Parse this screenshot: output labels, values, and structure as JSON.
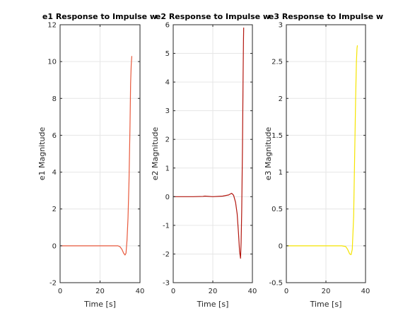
{
  "chart_data": [
    {
      "type": "line",
      "title": "e1 Response to Impulse w",
      "xlabel": "Time [s]",
      "ylabel": "e1 Magnitude",
      "xlim": [
        0,
        40
      ],
      "ylim": [
        -2,
        12
      ],
      "xticks": [
        "0",
        "20",
        "40"
      ],
      "yticks": [
        "-2",
        "0",
        "2",
        "4",
        "6",
        "8",
        "10",
        "12"
      ],
      "grid": true,
      "color": "#e8593c",
      "series": [
        {
          "x": [
            0,
            5,
            10,
            15,
            20,
            25,
            29,
            30,
            31,
            31.8,
            32.5,
            33,
            33.5,
            34,
            34.5,
            35,
            35.3,
            35.6,
            35.9
          ],
          "y": [
            0,
            0,
            0,
            0,
            0,
            0,
            0,
            -0.05,
            -0.2,
            -0.4,
            -0.5,
            -0.4,
            0.3,
            1.5,
            3.5,
            6.5,
            8.8,
            9.8,
            10.3
          ]
        }
      ]
    },
    {
      "type": "line",
      "title": "e2 Response to Impulse w",
      "xlabel": "Time [s]",
      "ylabel": "e2 Magnitude",
      "xlim": [
        0,
        40
      ],
      "ylim": [
        -3,
        6
      ],
      "xticks": [
        "0",
        "20",
        "40"
      ],
      "yticks": [
        "-3",
        "-2",
        "-1",
        "0",
        "1",
        "2",
        "3",
        "4",
        "5",
        "6"
      ],
      "grid": true,
      "color": "#b3170f",
      "series": [
        {
          "x": [
            0,
            10,
            15,
            16,
            20,
            25,
            28,
            29.5,
            30.5,
            31.5,
            32.3,
            33,
            33.5,
            34,
            34.3,
            34.6,
            35,
            35.3,
            35.5,
            35.6
          ],
          "y": [
            0,
            0,
            0.01,
            0.02,
            0,
            0.02,
            0.06,
            0.12,
            0.05,
            -0.2,
            -0.6,
            -1.3,
            -1.9,
            -2.15,
            -1.6,
            -0.5,
            1.8,
            4.2,
            5.5,
            5.9
          ]
        }
      ]
    },
    {
      "type": "line",
      "title": "e3 Response to Impulse w",
      "xlabel": "Time [s]",
      "ylabel": "e3 Magnitude",
      "xlim": [
        0,
        40
      ],
      "ylim": [
        -0.5,
        3
      ],
      "xticks": [
        "0",
        "20",
        "40"
      ],
      "yticks": [
        "-0.5",
        "0",
        "0.5",
        "1",
        "1.5",
        "2",
        "2.5",
        "3"
      ],
      "grid": true,
      "color": "#f5e400",
      "series": [
        {
          "x": [
            0,
            10,
            20,
            28,
            30,
            31,
            32,
            32.7,
            33.3,
            34,
            34.5,
            35,
            35.4,
            35.7,
            35.9
          ],
          "y": [
            0,
            0,
            0,
            0,
            -0.01,
            -0.05,
            -0.11,
            -0.12,
            -0.05,
            0.4,
            1.2,
            2.0,
            2.5,
            2.68,
            2.72
          ]
        }
      ]
    }
  ]
}
